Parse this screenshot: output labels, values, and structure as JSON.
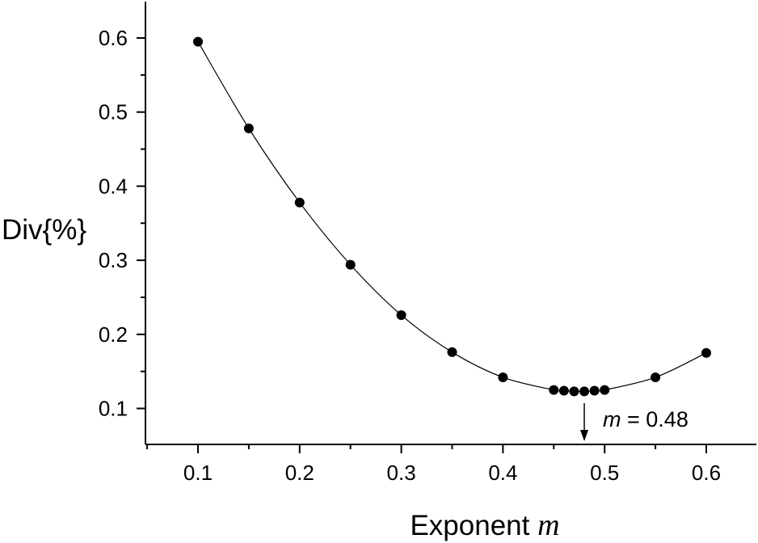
{
  "chart_data": {
    "type": "line",
    "title": "",
    "xlabel": "Exponent",
    "xlabel_var": "m",
    "ylabel": "Div{%}",
    "xlim": [
      0.05,
      0.65
    ],
    "ylim": [
      0.05,
      0.65
    ],
    "x_ticks": [
      "0.1",
      "0.2",
      "0.3",
      "0.4",
      "0.5",
      "0.6"
    ],
    "y_ticks": [
      "0.1",
      "0.2",
      "0.3",
      "0.4",
      "0.5",
      "0.6"
    ],
    "grid": false,
    "legend": "none",
    "series": [
      {
        "x": [
          0.1,
          0.15,
          0.2,
          0.25,
          0.3,
          0.35,
          0.4,
          0.45,
          0.46,
          0.47,
          0.48,
          0.49,
          0.5,
          0.55,
          0.6
        ],
        "y": [
          0.595,
          0.478,
          0.378,
          0.294,
          0.226,
          0.176,
          0.142,
          0.125,
          0.124,
          0.123,
          0.123,
          0.124,
          0.125,
          0.142,
          0.175
        ],
        "marker": "circle",
        "color": "#000000"
      }
    ],
    "annotations": [
      {
        "var": "m",
        "text": " = 0.48",
        "x": 0.48,
        "arrow": "down"
      }
    ]
  }
}
